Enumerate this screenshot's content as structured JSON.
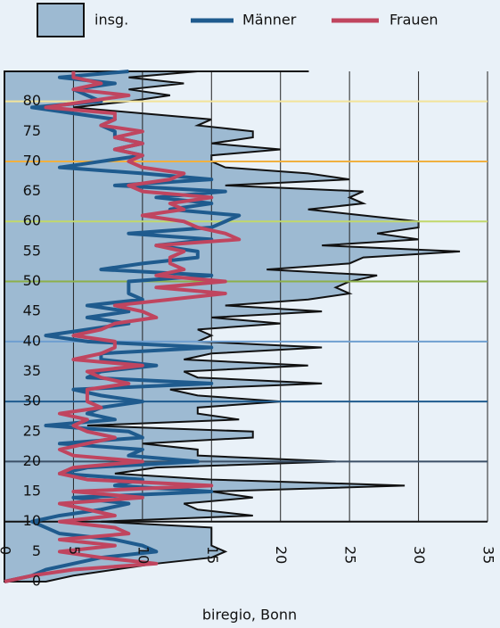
{
  "chart_data": {
    "type": "line",
    "caption": "biregio, Bonn",
    "y": [
      0,
      1,
      2,
      3,
      4,
      5,
      6,
      7,
      8,
      9,
      10,
      11,
      12,
      13,
      14,
      15,
      16,
      17,
      18,
      19,
      20,
      21,
      22,
      23,
      24,
      25,
      26,
      27,
      28,
      29,
      30,
      31,
      32,
      33,
      34,
      35,
      36,
      37,
      38,
      39,
      40,
      41,
      42,
      43,
      44,
      45,
      46,
      47,
      48,
      49,
      50,
      51,
      52,
      53,
      54,
      55,
      56,
      57,
      58,
      59,
      60,
      61,
      62,
      63,
      64,
      65,
      66,
      67,
      68,
      69,
      70,
      71,
      72,
      73,
      74,
      75,
      76,
      77,
      78,
      79,
      80,
      81,
      82,
      83,
      84,
      85
    ],
    "ylim": [
      0,
      85
    ],
    "yticks": [
      0,
      5,
      10,
      15,
      20,
      25,
      30,
      35,
      40,
      45,
      50,
      55,
      60,
      65,
      70,
      75,
      80
    ],
    "xlim": [
      0,
      35
    ],
    "xticks": [
      0,
      5,
      10,
      15,
      20,
      25,
      30,
      35
    ],
    "grid": true,
    "series": [
      {
        "name": "insg.",
        "color": "#9dbad2",
        "style": "area",
        "values": [
          3,
          5,
          8,
          11,
          15,
          16,
          15,
          15,
          15,
          15,
          7,
          18,
          14,
          13,
          18,
          15,
          29,
          15,
          8,
          11,
          24,
          14,
          14,
          10,
          18,
          18,
          6,
          17,
          14,
          14,
          20,
          14,
          12,
          23,
          14,
          13,
          22,
          13,
          15,
          23,
          14,
          15,
          14,
          20,
          15,
          23,
          16,
          22,
          25,
          24,
          25,
          27,
          19,
          25,
          26,
          33,
          23,
          30,
          27,
          30,
          30,
          26,
          22,
          26,
          25,
          26,
          16,
          25,
          22,
          16,
          15,
          15,
          20,
          15,
          18,
          18,
          14,
          15,
          10,
          5,
          9,
          12,
          9,
          13,
          9,
          14
        ]
      },
      {
        "name": "Männer",
        "color": "#1f5b8e",
        "style": "line",
        "values": [
          0,
          2,
          3,
          5,
          7,
          11,
          10,
          8,
          4,
          3,
          2,
          4,
          7,
          9,
          5,
          15,
          8,
          10,
          4,
          6,
          14,
          9,
          10,
          4,
          10,
          9,
          3,
          8,
          6,
          7,
          10,
          7,
          5,
          15,
          6,
          7,
          11,
          7,
          7,
          15,
          6,
          3,
          6,
          9,
          6,
          9,
          6,
          10,
          9,
          9,
          9,
          15,
          7,
          10,
          14,
          14,
          11,
          15,
          9,
          15,
          16,
          17,
          12,
          15,
          11,
          16,
          8,
          15,
          10,
          4,
          7,
          10,
          8,
          10,
          8,
          8,
          7,
          8,
          5,
          2,
          7,
          6,
          5,
          8,
          4,
          9
        ]
      },
      {
        "name": "Frauen",
        "color": "#c0455f",
        "style": "line",
        "values": [
          0,
          2,
          5,
          11,
          7,
          4,
          8,
          4,
          9,
          8,
          4,
          8,
          6,
          4,
          10,
          5,
          15,
          6,
          4,
          5,
          10,
          5,
          4,
          6,
          8,
          6,
          5,
          6,
          4,
          7,
          6,
          6,
          6,
          9,
          7,
          6,
          10,
          5,
          7,
          8,
          8,
          5,
          7,
          8,
          11,
          10,
          8,
          12,
          16,
          11,
          16,
          11,
          13,
          12,
          12,
          13,
          11,
          17,
          16,
          14,
          13,
          10,
          13,
          12,
          15,
          10,
          9,
          12,
          13,
          10,
          9,
          10,
          8,
          10,
          8,
          10,
          7,
          8,
          8,
          3,
          6,
          9,
          5,
          7,
          5,
          5
        ]
      }
    ],
    "reference_lines": [
      {
        "value": 10,
        "color": "#111111"
      },
      {
        "value": 20,
        "color": "#3b4f66"
      },
      {
        "value": 30,
        "color": "#1f5b8e"
      },
      {
        "value": 40,
        "color": "#6f9fd0"
      },
      {
        "value": 50,
        "color": "#8db04a"
      },
      {
        "value": 60,
        "color": "#c2d86a"
      },
      {
        "value": 70,
        "color": "#f0b040"
      },
      {
        "value": 80,
        "color": "#f3e49a"
      }
    ]
  }
}
